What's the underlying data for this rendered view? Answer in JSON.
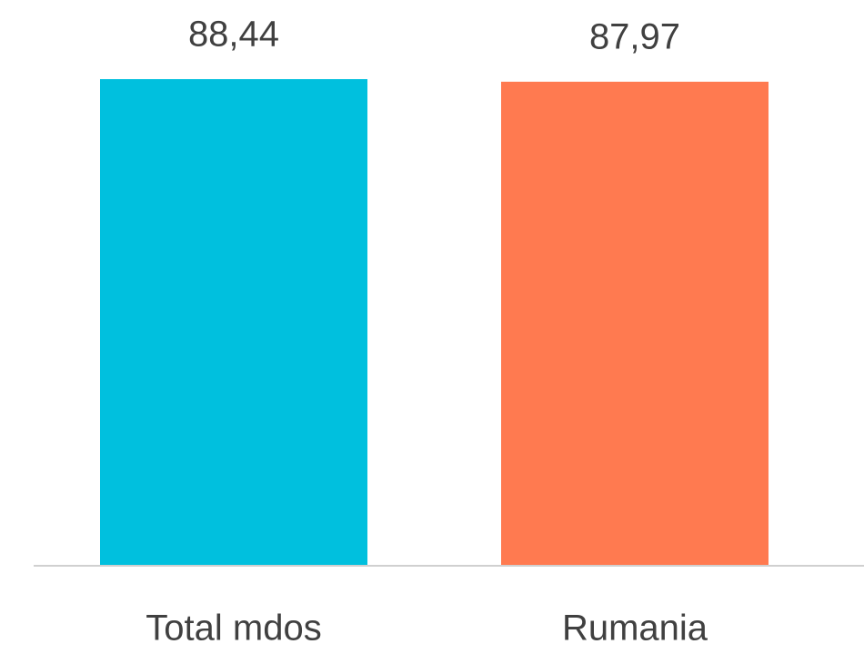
{
  "chart_data": {
    "type": "bar",
    "categories": [
      "Total mdos",
      "Rumania"
    ],
    "values": [
      88.44,
      87.97
    ],
    "value_labels": [
      "88,44",
      "87,97"
    ],
    "colors": [
      "#00c0de",
      "#ff7a50"
    ]
  }
}
